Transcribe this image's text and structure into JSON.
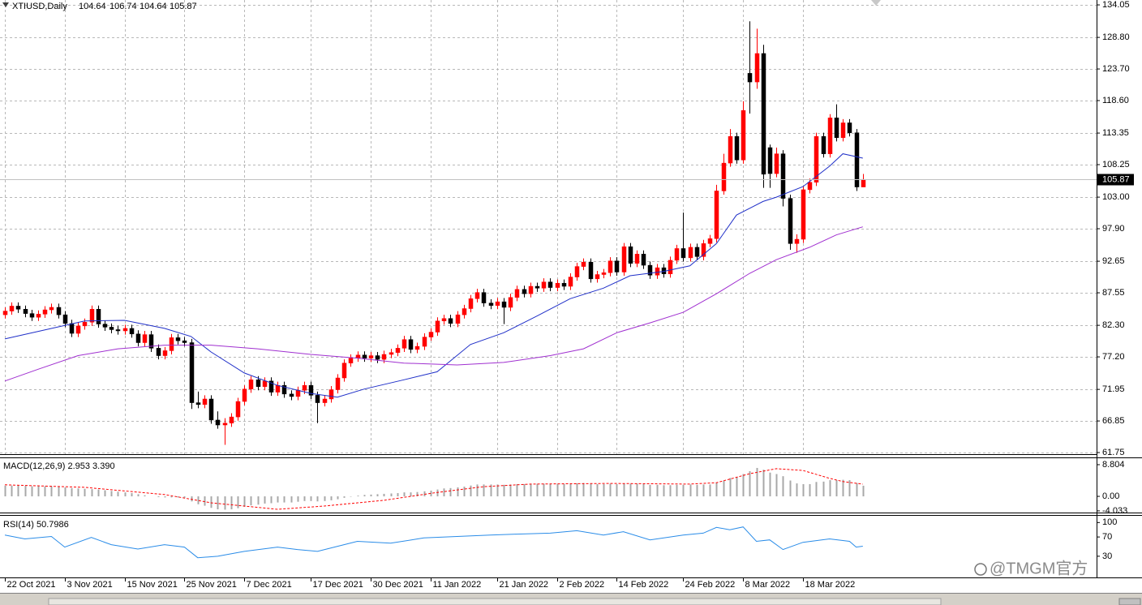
{
  "chart_data": {
    "type": "candlestick",
    "title": "XTIUSD,Daily",
    "up_color": "#ff0000",
    "down_color": "#000000",
    "grid": true,
    "xlim": [
      -0.73,
      164.15
    ],
    "xticks": [
      {
        "value": 0,
        "label": "22 Oct 2021"
      },
      {
        "value": 9,
        "label": "3 Nov 2021"
      },
      {
        "value": 18,
        "label": "15 Nov 2021"
      },
      {
        "value": 27,
        "label": "25 Nov 2021"
      },
      {
        "value": 36,
        "label": "7 Dec 2021"
      },
      {
        "value": 46,
        "label": "17 Dec 2021"
      },
      {
        "value": 55,
        "label": "30 Dec 2021"
      },
      {
        "value": 64,
        "label": "11 Jan 2022"
      },
      {
        "value": 74,
        "label": "21 Jan 2022"
      },
      {
        "value": 83,
        "label": "2 Feb 2022"
      },
      {
        "value": 92,
        "label": "14 Feb 2022"
      },
      {
        "value": 102,
        "label": "24 Feb 2022"
      },
      {
        "value": 111,
        "label": "8 Mar 2022"
      },
      {
        "value": 120,
        "label": "18 Mar 2022"
      }
    ],
    "ylim": [
      61.49,
      134.84
    ],
    "yticks": [
      134.05,
      {
        "value": 128.8,
        "label": "128.80"
      },
      {
        "value": 123.7,
        "label": "123.70"
      },
      {
        "value": 118.6,
        "label": "118.60"
      },
      113.35,
      108.25,
      {
        "value": 103,
        "label": "103.00"
      },
      {
        "value": 97.9,
        "label": "97.90"
      },
      92.65,
      87.55,
      {
        "value": 82.3,
        "label": "82.30"
      },
      {
        "value": 77.2,
        "label": "77.20"
      },
      71.95,
      66.85,
      61.75
    ],
    "ohlc": [
      [
        84.0,
        85.2,
        83.4,
        84.6
      ],
      [
        84.6,
        86.0,
        84.0,
        85.4
      ],
      [
        85.4,
        86.0,
        84.3,
        84.9
      ],
      [
        84.9,
        85.5,
        83.6,
        84.2
      ],
      [
        84.2,
        84.8,
        83.0,
        83.6
      ],
      [
        83.6,
        84.7,
        83.0,
        84.1
      ],
      [
        84.1,
        85.4,
        83.5,
        84.8
      ],
      [
        84.8,
        85.8,
        84.2,
        85.2
      ],
      [
        85.2,
        85.8,
        83.4,
        84.0
      ],
      [
        84.0,
        84.6,
        82.0,
        82.6
      ],
      [
        82.6,
        83.2,
        80.4,
        81.0
      ],
      [
        81.0,
        82.8,
        80.4,
        82.2
      ],
      [
        82.2,
        83.4,
        81.6,
        82.8
      ],
      [
        82.8,
        85.5,
        82.2,
        84.9
      ],
      [
        84.9,
        85.5,
        81.9,
        82.5
      ],
      [
        82.5,
        83.1,
        81.4,
        82.0
      ],
      [
        82.0,
        82.6,
        81.0,
        81.6
      ],
      [
        81.6,
        82.2,
        80.8,
        81.4
      ],
      [
        81.4,
        82.4,
        80.8,
        81.8
      ],
      [
        81.8,
        82.4,
        80.3,
        80.9
      ],
      [
        80.9,
        81.5,
        78.9,
        79.5
      ],
      [
        79.5,
        81.4,
        78.9,
        80.8
      ],
      [
        80.8,
        81.4,
        78.0,
        78.6
      ],
      [
        78.6,
        79.2,
        76.8,
        77.4
      ],
      [
        77.4,
        78.8,
        76.8,
        78.2
      ],
      [
        78.2,
        80.9,
        77.6,
        80.3
      ],
      [
        80.3,
        80.9,
        79.2,
        79.8
      ],
      [
        79.8,
        80.4,
        78.9,
        79.5
      ],
      [
        79.5,
        80.1,
        68.8,
        69.8
      ],
      [
        69.8,
        71.6,
        68.9,
        69.5
      ],
      [
        69.5,
        71.0,
        68.9,
        70.4
      ],
      [
        70.4,
        71.0,
        66.4,
        67.0
      ],
      [
        67.0,
        68.4,
        65.6,
        66.2
      ],
      [
        66.2,
        67.3,
        63.0,
        66.5
      ],
      [
        66.5,
        68.1,
        65.9,
        67.5
      ],
      [
        67.5,
        70.6,
        66.9,
        70.0
      ],
      [
        70.0,
        72.6,
        69.4,
        72.0
      ],
      [
        72.0,
        74.1,
        71.4,
        73.5
      ],
      [
        73.5,
        74.1,
        71.8,
        72.4
      ],
      [
        72.4,
        73.9,
        71.8,
        73.3
      ],
      [
        73.3,
        73.9,
        70.9,
        71.5
      ],
      [
        71.5,
        73.2,
        70.9,
        72.6
      ],
      [
        72.6,
        73.2,
        70.6,
        71.2
      ],
      [
        71.2,
        71.8,
        70.2,
        70.8
      ],
      [
        70.8,
        72.4,
        70.2,
        71.8
      ],
      [
        71.8,
        73.2,
        71.2,
        72.6
      ],
      [
        72.6,
        73.2,
        70.4,
        71.0
      ],
      [
        71.0,
        71.6,
        66.5,
        69.8
      ],
      [
        69.8,
        71.0,
        69.2,
        70.4
      ],
      [
        70.4,
        72.5,
        69.8,
        71.9
      ],
      [
        71.9,
        74.4,
        71.3,
        73.8
      ],
      [
        73.8,
        76.8,
        73.2,
        76.2
      ],
      [
        76.2,
        77.6,
        75.6,
        77.0
      ],
      [
        77.0,
        78.1,
        76.4,
        77.5
      ],
      [
        77.5,
        78.1,
        76.4,
        77.0
      ],
      [
        77.0,
        78.0,
        76.4,
        77.4
      ],
      [
        77.4,
        78.0,
        76.2,
        76.8
      ],
      [
        76.8,
        78.2,
        76.2,
        77.6
      ],
      [
        77.6,
        78.5,
        77.0,
        77.9
      ],
      [
        77.9,
        79.2,
        77.3,
        78.6
      ],
      [
        78.6,
        80.6,
        78.0,
        80.0
      ],
      [
        80.0,
        80.6,
        77.8,
        78.4
      ],
      [
        78.4,
        79.5,
        77.8,
        78.9
      ],
      [
        78.9,
        81.0,
        78.3,
        80.4
      ],
      [
        80.4,
        81.8,
        79.8,
        81.2
      ],
      [
        81.2,
        83.6,
        80.6,
        83.0
      ],
      [
        83.0,
        84.0,
        82.4,
        83.4
      ],
      [
        83.4,
        84.0,
        82.0,
        82.6
      ],
      [
        82.6,
        84.6,
        82.0,
        84.0
      ],
      [
        84.0,
        85.6,
        83.4,
        85.0
      ],
      [
        85.0,
        87.2,
        84.4,
        86.6
      ],
      [
        86.6,
        88.2,
        86.0,
        87.6
      ],
      [
        87.6,
        88.2,
        85.3,
        85.9
      ],
      [
        85.9,
        86.5,
        84.9,
        85.5
      ],
      [
        85.5,
        86.7,
        84.9,
        86.1
      ],
      [
        86.1,
        86.7,
        82.5,
        85.2
      ],
      [
        85.2,
        87.4,
        84.6,
        86.8
      ],
      [
        86.8,
        88.7,
        86.2,
        88.1
      ],
      [
        88.1,
        88.7,
        86.8,
        87.4
      ],
      [
        87.4,
        89.2,
        86.8,
        88.6
      ],
      [
        88.6,
        89.2,
        87.7,
        88.3
      ],
      [
        88.3,
        89.9,
        87.7,
        89.3
      ],
      [
        89.3,
        89.9,
        87.8,
        88.4
      ],
      [
        88.4,
        89.7,
        87.8,
        89.1
      ],
      [
        89.1,
        89.7,
        88.0,
        88.6
      ],
      [
        88.6,
        90.7,
        88.0,
        90.1
      ],
      [
        90.1,
        92.4,
        89.5,
        91.8
      ],
      [
        91.8,
        93.1,
        91.2,
        92.5
      ],
      [
        92.5,
        93.1,
        89.2,
        89.8
      ],
      [
        89.8,
        91.1,
        89.2,
        90.5
      ],
      [
        90.5,
        91.4,
        89.9,
        90.8
      ],
      [
        90.8,
        93.3,
        90.2,
        92.7
      ],
      [
        92.7,
        93.3,
        90.3,
        90.9
      ],
      [
        90.9,
        95.6,
        90.3,
        95.0
      ],
      [
        95.0,
        95.6,
        91.7,
        92.3
      ],
      [
        92.3,
        94.4,
        91.7,
        93.8
      ],
      [
        93.8,
        94.4,
        91.4,
        92.0
      ],
      [
        92.0,
        92.6,
        89.8,
        90.4
      ],
      [
        90.4,
        92.2,
        89.8,
        91.6
      ],
      [
        91.6,
        92.2,
        90.0,
        90.6
      ],
      [
        90.6,
        93.4,
        90.0,
        92.8
      ],
      [
        92.8,
        95.3,
        92.2,
        94.7
      ],
      [
        94.7,
        100.5,
        92.6,
        93.2
      ],
      [
        93.2,
        95.5,
        92.6,
        94.9
      ],
      [
        94.9,
        95.5,
        92.8,
        93.4
      ],
      [
        93.4,
        96.1,
        92.8,
        95.5
      ],
      [
        95.5,
        96.9,
        94.9,
        96.3
      ],
      [
        96.3,
        105.0,
        95.7,
        104.0
      ],
      [
        104.0,
        110.0,
        103.4,
        108.5
      ],
      [
        108.5,
        114.0,
        107.9,
        112.8
      ],
      [
        112.8,
        113.4,
        108.4,
        109.0
      ],
      [
        109.0,
        118.5,
        108.4,
        117.0
      ],
      [
        123.0,
        131.4,
        116.5,
        121.6
      ],
      [
        121.6,
        130.2,
        120.5,
        126.2
      ],
      [
        126.2,
        127.6,
        104.5,
        106.7
      ],
      [
        111.0,
        111.5,
        104.5,
        106.8
      ],
      [
        106.8,
        111.0,
        106.2,
        110.0
      ],
      [
        110.0,
        110.6,
        101.5,
        102.8
      ],
      [
        102.8,
        103.4,
        94.5,
        95.5
      ],
      [
        95.5,
        97.0,
        94.0,
        96.2
      ],
      [
        96.2,
        104.8,
        95.6,
        104.2
      ],
      [
        104.2,
        106.0,
        103.6,
        105.4
      ],
      [
        105.4,
        113.4,
        104.8,
        112.8
      ],
      [
        112.8,
        113.4,
        109.4,
        110.0
      ],
      [
        110.0,
        116.4,
        109.4,
        115.8
      ],
      [
        115.8,
        118.0,
        112.0,
        112.6
      ],
      [
        112.6,
        115.6,
        112.0,
        115.0
      ],
      [
        115.0,
        115.6,
        112.8,
        113.4
      ],
      [
        113.4,
        114.0,
        104.0,
        104.64
      ],
      [
        104.64,
        106.74,
        104.64,
        105.87
      ]
    ],
    "lines": [
      {
        "color": "#1f2fc8",
        "x": [
          0,
          12,
          18,
          24,
          28,
          31,
          36,
          41,
          46,
          50,
          54,
          60,
          65,
          70,
          75,
          80,
          85,
          90,
          94,
          99,
          103,
          107,
          110,
          114,
          116,
          120,
          124,
          126,
          129
        ],
        "values": [
          80.1,
          83.0,
          83.1,
          81.8,
          80.5,
          78.0,
          74.6,
          72.6,
          71.3,
          70.7,
          72.0,
          73.5,
          74.8,
          79.2,
          81.1,
          83.8,
          86.6,
          88.3,
          90.3,
          91.0,
          91.9,
          95.5,
          100.1,
          102.3,
          103.0,
          104.7,
          108.0,
          110.0,
          109.3
        ]
      },
      {
        "color": "#a030d0",
        "x": [
          0,
          5,
          11,
          17,
          24,
          31,
          38,
          46,
          53,
          60,
          68,
          75,
          82,
          87,
          92,
          97,
          102,
          107,
          112,
          116,
          121,
          125,
          129
        ],
        "values": [
          73.3,
          75.2,
          77.4,
          78.5,
          79.1,
          79.1,
          78.5,
          77.6,
          77.0,
          76.2,
          75.9,
          76.3,
          77.4,
          78.5,
          81.1,
          82.7,
          84.4,
          87.4,
          90.7,
          92.9,
          94.9,
          96.9,
          98.2
        ]
      }
    ],
    "macd": {
      "title": "MACD(12,26,9) 2.953 3.390",
      "ylim": [
        -4.5,
        10.6
      ],
      "yticks": [
        8.804,
        {
          "value": 0,
          "label": "0.00"
        },
        -4.033
      ],
      "histogram": {
        "color": "#a8a8a8",
        "values": [
          3.0,
          3.0,
          3.0,
          2.9,
          2.8,
          2.8,
          2.8,
          2.8,
          2.7,
          2.5,
          2.3,
          2.2,
          2.1,
          2.0,
          1.9,
          1.7,
          1.5,
          1.3,
          1.1,
          0.9,
          0.6,
          0.3,
          0.0,
          -0.2,
          -0.3,
          -0.3,
          -0.3,
          -0.4,
          -1.4,
          -2.2,
          -2.6,
          -3.2,
          -3.6,
          -3.7,
          -3.6,
          -3.3,
          -2.9,
          -2.5,
          -2.3,
          -2.0,
          -1.9,
          -1.7,
          -1.7,
          -1.7,
          -1.5,
          -1.3,
          -1.3,
          -1.4,
          -1.3,
          -1.1,
          -0.8,
          -0.4,
          -0.1,
          0.2,
          0.4,
          0.5,
          0.6,
          0.7,
          0.8,
          0.9,
          1.1,
          1.1,
          1.2,
          1.4,
          1.6,
          1.9,
          2.2,
          2.3,
          2.5,
          2.7,
          3.0,
          3.3,
          3.3,
          3.3,
          3.3,
          3.2,
          3.3,
          3.4,
          3.4,
          3.5,
          3.5,
          3.5,
          3.5,
          3.5,
          3.4,
          3.5,
          3.6,
          3.7,
          3.5,
          3.4,
          3.4,
          3.5,
          3.4,
          3.6,
          3.5,
          3.5,
          3.4,
          3.2,
          3.2,
          3.1,
          3.1,
          3.2,
          3.2,
          3.3,
          3.2,
          3.3,
          3.3,
          3.8,
          4.4,
          5.1,
          5.3,
          6.2,
          7.0,
          7.9,
          7.4,
          6.6,
          6.2,
          5.6,
          4.4,
          3.6,
          3.4,
          3.4,
          4.0,
          4.1,
          4.5,
          4.5,
          4.6,
          4.5,
          3.7,
          2.953
        ]
      },
      "signal": {
        "color": "#ff0000",
        "x": [
          0,
          12,
          24,
          31,
          41,
          48,
          57,
          65,
          72,
          79,
          91,
          103,
          107,
          112,
          116,
          120,
          124,
          126,
          129
        ],
        "values": [
          3.2,
          2.5,
          0.5,
          -1.8,
          -3.6,
          -2.7,
          -1.1,
          1.1,
          2.7,
          3.4,
          3.6,
          3.4,
          3.8,
          6.3,
          7.7,
          7.2,
          5.0,
          4.1,
          3.39
        ]
      }
    },
    "rsi": {
      "title": "RSI(14) 50.7986",
      "ylim": [
        -14,
        114
      ],
      "yticks": [
        100,
        70,
        30
      ],
      "line": {
        "color": "#2a8ce8",
        "x": [
          0,
          3,
          7,
          9,
          13,
          16,
          20,
          24,
          27,
          29,
          32,
          36,
          41,
          44,
          47,
          51,
          53,
          58,
          63,
          68,
          73,
          77,
          82,
          86,
          90,
          93,
          97,
          102,
          105,
          107,
          109,
          111,
          113,
          115,
          117,
          120,
          124,
          127,
          128,
          129
        ],
        "values": [
          74,
          66,
          71,
          49,
          69,
          54,
          45,
          54,
          49,
          27,
          30,
          40,
          49,
          44,
          40,
          54,
          61,
          57,
          68,
          71,
          74,
          76,
          78,
          83,
          74,
          81,
          64,
          74,
          78,
          90,
          85,
          91,
          61,
          64,
          44,
          59,
          66,
          61,
          49,
          50.7986
        ]
      }
    }
  },
  "watermark": "@TMGM官方"
}
